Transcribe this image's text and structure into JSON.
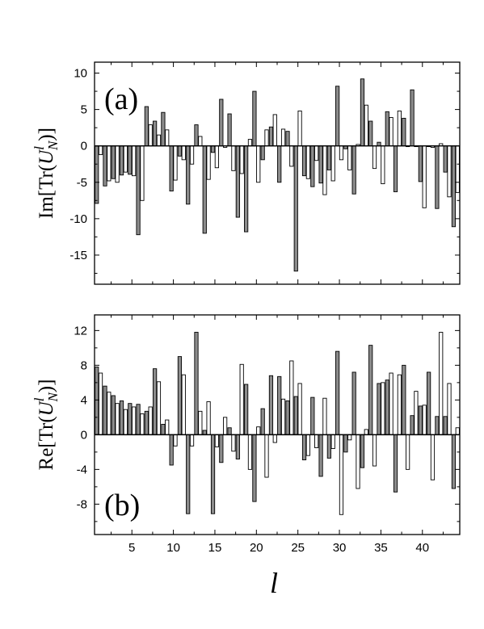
{
  "chart_data": [
    {
      "type": "bar",
      "panel_label": "(a)",
      "ylabel": "Im[Tr(U^l_N)]",
      "ylabel_parts": {
        "prefix": "Im[Tr(",
        "var": "U",
        "sup": "l",
        "sub": "N",
        "suffix": ")]"
      },
      "xlim": [
        0.5,
        44.5
      ],
      "ylim": [
        -19,
        11.5
      ],
      "yticks": [
        10,
        5,
        0,
        -5,
        -10,
        -15
      ],
      "xticks": [
        5,
        10,
        15,
        20,
        25,
        30,
        35,
        40
      ],
      "series": [
        {
          "fill": "#8c8c8c",
          "values": [
            -7.9,
            -5.5,
            -4.5,
            -4.0,
            -3.9,
            -12.2,
            5.4,
            3.4,
            4.6,
            -6.2,
            -1.4,
            -8.0,
            2.9,
            -12.0,
            -0.9,
            6.4,
            4.4,
            -9.8,
            -11.8,
            7.5,
            -1.9,
            2.6,
            -5.0,
            2.0,
            -17.2,
            -4.1,
            -5.6,
            -5.1,
            -3.3,
            8.2,
            -0.4,
            -6.6,
            9.2,
            3.4,
            0.5,
            4.7,
            -6.3,
            3.8,
            7.7,
            -4.9,
            -0.1,
            -8.6,
            -3.6,
            -11.1
          ]
        },
        {
          "fill": "#ffffff",
          "values": [
            -1.2,
            -4.8,
            -5.0,
            -3.6,
            -4.1,
            -7.5,
            2.9,
            1.5,
            2.2,
            -4.7,
            -1.9,
            -2.5,
            1.3,
            -4.6,
            -3.0,
            -0.2,
            -3.4,
            -3.8,
            0.9,
            -5.0,
            2.2,
            4.3,
            2.3,
            -2.8,
            4.8,
            -4.5,
            -2.0,
            -6.7,
            -4.8,
            -1.9,
            -3.3,
            0.2,
            5.6,
            -3.1,
            -5.2,
            3.9,
            4.8,
            -0.1,
            -0.1,
            -8.5,
            -0.2,
            0.3,
            -7.0,
            -6.4
          ]
        }
      ]
    },
    {
      "type": "bar",
      "panel_label": "(b)",
      "ylabel": "Re[Tr(U^l_N)]",
      "ylabel_parts": {
        "prefix": "Re[Tr(",
        "var": "U",
        "sup": "l",
        "sub": "N",
        "suffix": ")]"
      },
      "xlabel": "l",
      "xlim": [
        0.5,
        44.5
      ],
      "ylim": [
        -11.5,
        13.8
      ],
      "yticks": [
        12,
        8,
        4,
        0,
        -4,
        -8
      ],
      "xticks": [
        5,
        10,
        15,
        20,
        25,
        30,
        35,
        40
      ],
      "series": [
        {
          "fill": "#8c8c8c",
          "values": [
            7.8,
            5.6,
            4.5,
            3.9,
            3.6,
            3.5,
            2.7,
            7.6,
            1.2,
            -3.5,
            9.0,
            -9.1,
            11.8,
            0.5,
            -9.1,
            -3.2,
            0.8,
            -2.8,
            5.8,
            -7.7,
            3.0,
            6.8,
            6.7,
            3.9,
            4.4,
            -2.9,
            4.3,
            -4.8,
            -2.7,
            9.6,
            -2.0,
            7.2,
            -3.8,
            10.3,
            5.9,
            6.3,
            -6.6,
            8.0,
            2.2,
            3.3,
            7.2,
            2.1,
            2.1,
            -6.2
          ]
        },
        {
          "fill": "#ffffff",
          "values": [
            7.1,
            4.9,
            3.6,
            2.9,
            3.2,
            2.4,
            3.2,
            6.1,
            1.7,
            -1.3,
            6.9,
            -1.3,
            2.7,
            3.8,
            -1.4,
            2.0,
            -1.9,
            8.1,
            -4.0,
            0.9,
            -4.9,
            -0.9,
            4.1,
            8.5,
            5.9,
            -2.4,
            -1.5,
            4.2,
            -1.6,
            -9.2,
            -0.6,
            -6.2,
            0.6,
            -3.6,
            6.0,
            7.1,
            6.9,
            -4.0,
            5.0,
            3.4,
            -5.2,
            11.8,
            5.9,
            0.8
          ]
        }
      ]
    }
  ]
}
